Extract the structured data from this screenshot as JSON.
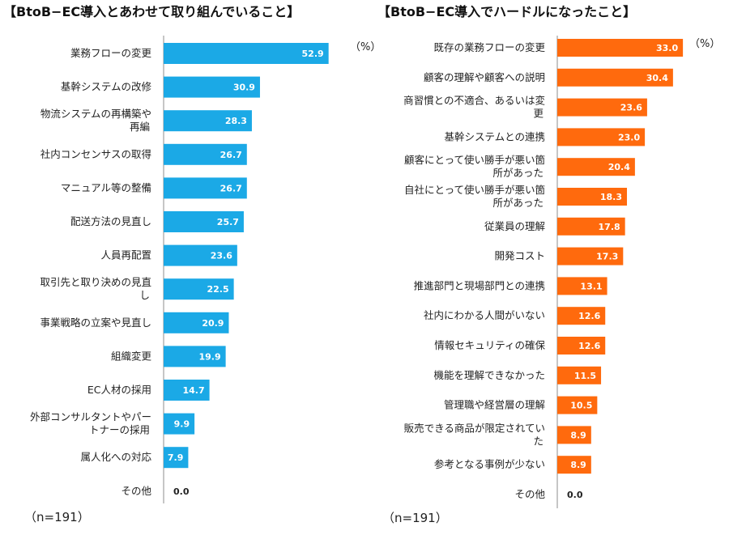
{
  "chart_data": [
    {
      "type": "bar",
      "orientation": "horizontal",
      "title": "【BtoB−EC導入とあわせて取り組んでいること】",
      "unit": "（%）",
      "note": "（n=191）",
      "color": "#1BA9E6",
      "xlim": [
        0,
        100
      ],
      "categories": [
        [
          "業務フローの変更"
        ],
        [
          "基幹システムの改修"
        ],
        [
          "物流システムの再構築や",
          "再編"
        ],
        [
          "社内コンセンサスの取得"
        ],
        [
          "マニュアル等の整備"
        ],
        [
          "配送方法の見直し"
        ],
        [
          "人員再配置"
        ],
        [
          "取引先と取り決めの見直",
          "し"
        ],
        [
          "事業戦略の立案や見直し"
        ],
        [
          "組織変更"
        ],
        [
          "EC人材の採用"
        ],
        [
          "外部コンサルタントやパー",
          "トナーの採用"
        ],
        [
          "属人化への対応"
        ],
        [
          "その他"
        ]
      ],
      "values": [
        52.9,
        30.9,
        28.3,
        26.7,
        26.7,
        25.7,
        23.6,
        22.5,
        20.9,
        19.9,
        14.7,
        9.9,
        7.9,
        0.0
      ],
      "value_labels": [
        "52.9",
        "30.9",
        "28.3",
        "26.7",
        "26.7",
        "25.7",
        "23.6",
        "22.5",
        "20.9",
        "19.9",
        "14.7",
        "9.9",
        "7.9",
        "0.0"
      ]
    },
    {
      "type": "bar",
      "orientation": "horizontal",
      "title": "【BtoB−EC導入でハードルになったこと】",
      "unit": "（%）",
      "note": "（n=191）",
      "color": "#FF6A0D",
      "xlim": [
        0,
        100
      ],
      "categories": [
        [
          "既存の業務フローの変更"
        ],
        [
          "顧客の理解や顧客への説明"
        ],
        [
          "商習慣との不適合、あるいは変",
          "更"
        ],
        [
          "基幹システムとの連携"
        ],
        [
          "顧客にとって使い勝手が悪い箇",
          "所があった"
        ],
        [
          "自社にとって使い勝手が悪い箇",
          "所があった"
        ],
        [
          "従業員の理解"
        ],
        [
          "開発コスト"
        ],
        [
          "推進部門と現場部門との連携"
        ],
        [
          "社内にわかる人間がいない"
        ],
        [
          "情報セキュリティの確保"
        ],
        [
          "機能を理解できなかった"
        ],
        [
          "管理職や経営層の理解"
        ],
        [
          "販売できる商品が限定されてい",
          "た"
        ],
        [
          "参考となる事例が少ない"
        ],
        [
          "その他"
        ]
      ],
      "values": [
        33.0,
        30.4,
        23.6,
        23.0,
        20.4,
        18.3,
        17.8,
        17.3,
        13.1,
        12.6,
        12.6,
        11.5,
        10.5,
        8.9,
        8.9,
        0.0
      ],
      "value_labels": [
        "33.0",
        "30.4",
        "23.6",
        "23.0",
        "20.4",
        "18.3",
        "17.8",
        "17.3",
        "13.1",
        "12.6",
        "12.6",
        "11.5",
        "10.5",
        "8.9",
        "8.9",
        "0.0"
      ]
    }
  ]
}
